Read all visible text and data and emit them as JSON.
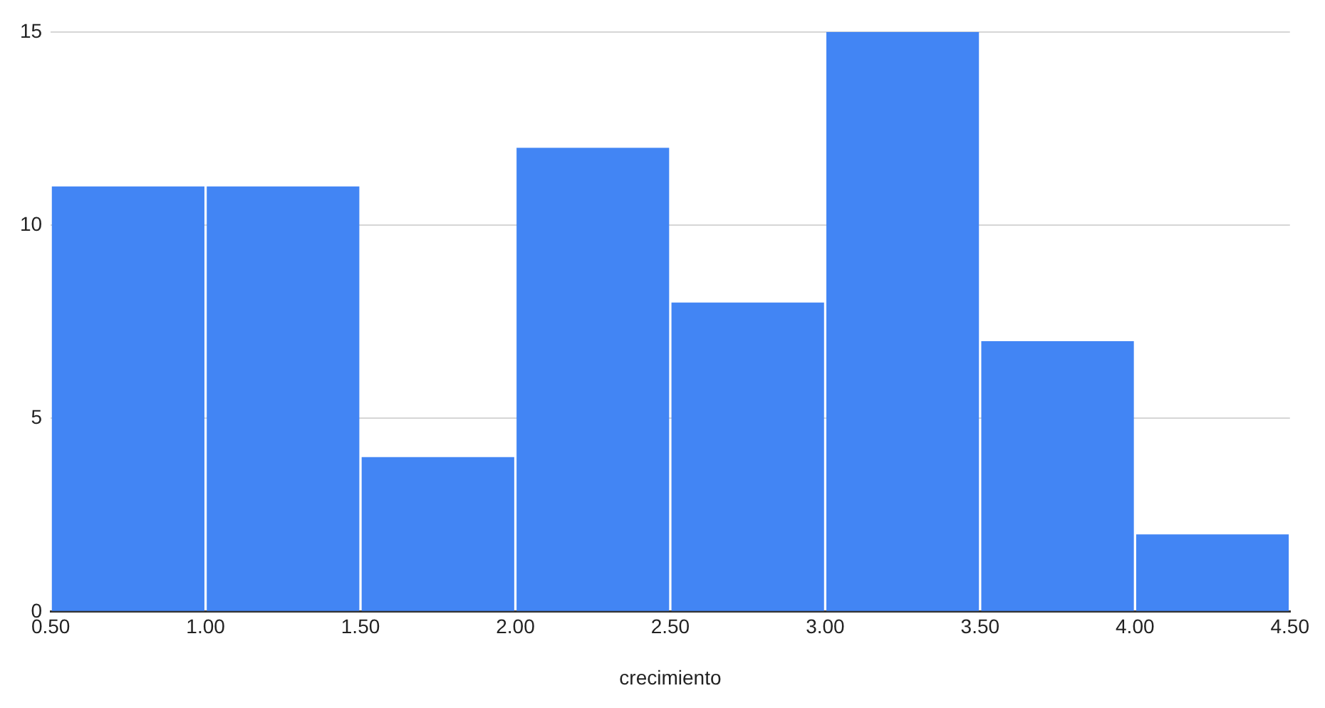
{
  "chart_data": {
    "type": "histogram",
    "xlabel": "crecimiento",
    "bins": [
      0.5,
      1,
      1.5,
      2,
      2.5,
      3,
      3.5,
      4,
      4.5
    ],
    "values": [
      11,
      11,
      4,
      12,
      8,
      15,
      7,
      2
    ],
    "color": "#4285f4",
    "xlim": [
      0.5,
      4.5
    ],
    "xticks": [
      {
        "value": 0.5,
        "label": "0.50"
      },
      {
        "value": 1,
        "label": "1.00"
      },
      {
        "value": 1.5,
        "label": "1.50"
      },
      {
        "value": 2,
        "label": "2.00"
      },
      {
        "value": 2.5,
        "label": "2.50"
      },
      {
        "value": 3,
        "label": "3.00"
      },
      {
        "value": 3.5,
        "label": "3.50"
      },
      {
        "value": 4,
        "label": "4.00"
      },
      {
        "value": 4.5,
        "label": "4.50"
      }
    ],
    "ylim": [
      0,
      15
    ],
    "yticks": [
      0,
      5,
      10,
      15
    ],
    "grid": "y"
  }
}
